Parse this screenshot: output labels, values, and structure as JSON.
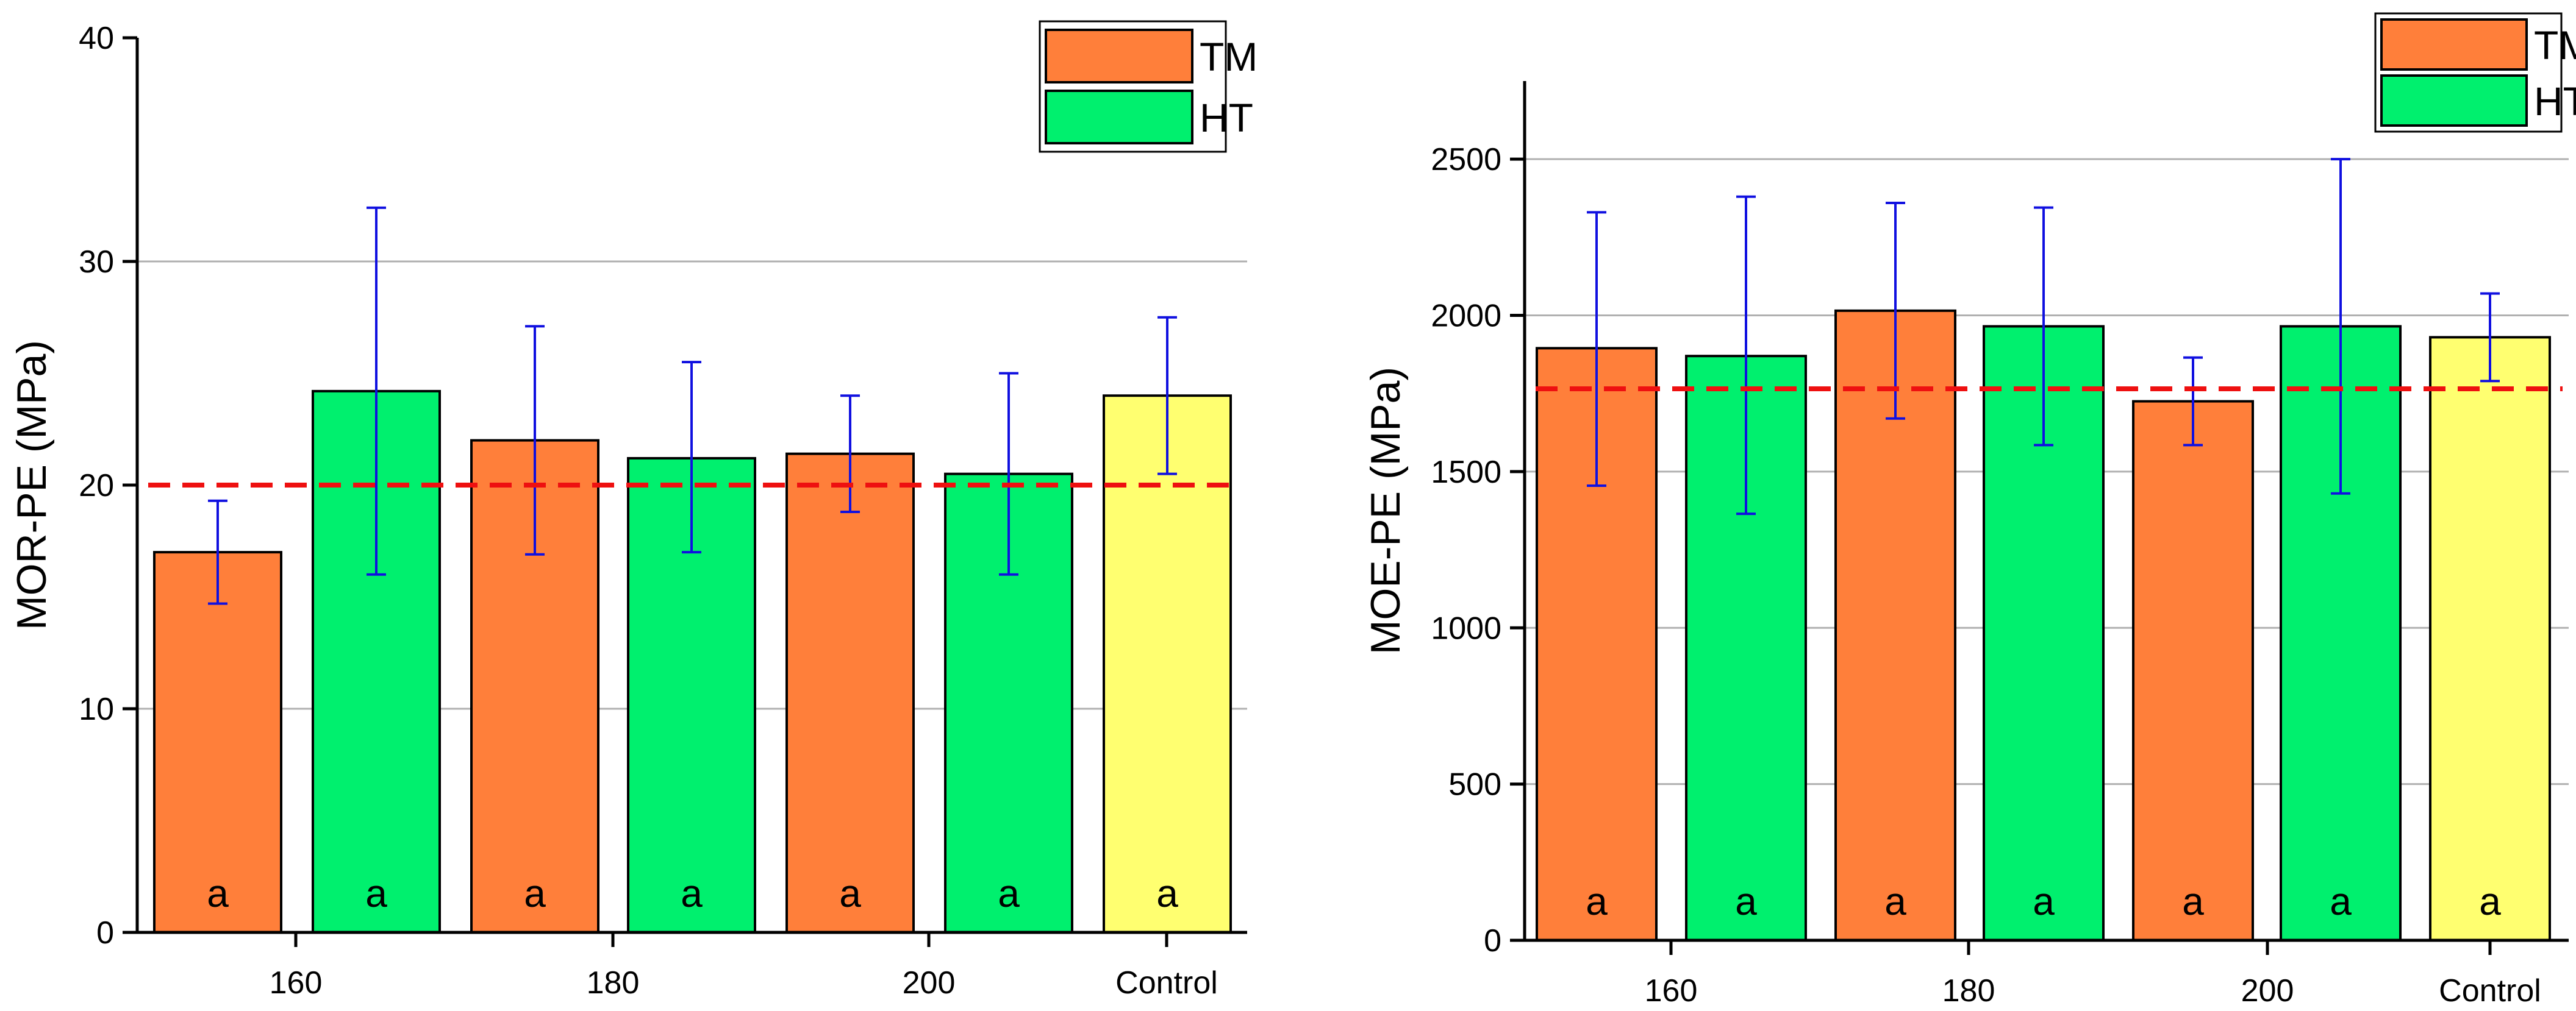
{
  "colors": {
    "TM": "#ff7f3a",
    "HT": "#00f06e",
    "Control": "#ffff70",
    "error": "#1010e0",
    "reference": "#ee1010",
    "grid": "#b0b0b0"
  },
  "legend": {
    "tm_label": "TM",
    "ht_label": "HT"
  },
  "chart_data": [
    {
      "type": "bar",
      "ylabel": "MOR-PE (MPa)",
      "ylim": [
        0,
        40
      ],
      "yticks": [
        0,
        10,
        20,
        30,
        40
      ],
      "ytick_labels": [
        "0",
        "10",
        "20",
        "30",
        "40"
      ],
      "grid_lines": [
        10,
        30
      ],
      "categories": [
        "160",
        "180",
        "200",
        "Control"
      ],
      "reference_line": 20,
      "legend_position": "top-right",
      "bars": [
        {
          "group": "TM",
          "category": "160",
          "value": 17.0,
          "err_low": 14.7,
          "err_high": 19.3,
          "label": "a"
        },
        {
          "group": "HT",
          "category": "160",
          "value": 24.2,
          "err_low": 16.0,
          "err_high": 32.4,
          "label": "a"
        },
        {
          "group": "TM",
          "category": "180",
          "value": 22.0,
          "err_low": 16.9,
          "err_high": 27.1,
          "label": "a"
        },
        {
          "group": "HT",
          "category": "180",
          "value": 21.2,
          "err_low": 17.0,
          "err_high": 25.5,
          "label": "a"
        },
        {
          "group": "TM",
          "category": "200",
          "value": 21.4,
          "err_low": 18.8,
          "err_high": 24.0,
          "label": "a"
        },
        {
          "group": "HT",
          "category": "200",
          "value": 20.5,
          "err_low": 16.0,
          "err_high": 25.0,
          "label": "a"
        },
        {
          "group": "Control",
          "category": "Control",
          "value": 24.0,
          "err_low": 20.5,
          "err_high": 27.5,
          "label": "a"
        }
      ]
    },
    {
      "type": "bar",
      "ylabel": "MOE-PE (MPa)",
      "ylim": [
        0,
        2750
      ],
      "yticks": [
        0,
        500,
        1000,
        1500,
        2000,
        2500
      ],
      "ytick_labels": [
        "0",
        "500",
        "1000",
        "1500",
        "2000",
        "2500"
      ],
      "grid_lines": [
        500,
        1000,
        1500,
        2000,
        2500
      ],
      "categories": [
        "160",
        "180",
        "200",
        "Control"
      ],
      "reference_line": 1765,
      "legend_position": "top-right",
      "bars": [
        {
          "group": "TM",
          "category": "160",
          "value": 1895,
          "err_low": 1455,
          "err_high": 2330,
          "label": "a"
        },
        {
          "group": "HT",
          "category": "160",
          "value": 1870,
          "err_low": 1365,
          "err_high": 2380,
          "label": "a"
        },
        {
          "group": "TM",
          "category": "180",
          "value": 2015,
          "err_low": 1670,
          "err_high": 2360,
          "label": "a"
        },
        {
          "group": "HT",
          "category": "180",
          "value": 1965,
          "err_low": 1585,
          "err_high": 2345,
          "label": "a"
        },
        {
          "group": "TM",
          "category": "200",
          "value": 1725,
          "err_low": 1585,
          "err_high": 1865,
          "label": "a"
        },
        {
          "group": "HT",
          "category": "200",
          "value": 1965,
          "err_low": 1430,
          "err_high": 2500,
          "label": "a"
        },
        {
          "group": "Control",
          "category": "Control",
          "value": 1930,
          "err_low": 1790,
          "err_high": 2070,
          "label": "a"
        }
      ]
    }
  ]
}
